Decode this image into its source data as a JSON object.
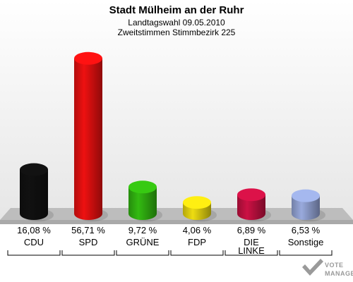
{
  "chart_data": {
    "type": "bar",
    "title": "Stadt Mülheim an der Ruhr",
    "subtitle_lines": [
      "Landtagswahl 09.05.2010",
      "Zweitstimmen Stimmbezirk 225"
    ],
    "categories": [
      "CDU",
      "SPD",
      "GRÜNE",
      "FDP",
      "DIE LINKE",
      "Sonstige"
    ],
    "category_label_lines": [
      [
        "CDU"
      ],
      [
        "SPD"
      ],
      [
        "GRÜNE"
      ],
      [
        "FDP"
      ],
      [
        "DIE",
        "LINKE"
      ],
      [
        "Sonstige"
      ]
    ],
    "values": [
      16.08,
      56.71,
      9.72,
      4.06,
      6.89,
      6.53
    ],
    "value_labels": [
      "16,08 %",
      "56,71 %",
      "9,72 %",
      "4,06 %",
      "6,89 %",
      "6,53 %"
    ],
    "colors": [
      "#111111",
      "#ee1111",
      "#33bb11",
      "#eedd11",
      "#cc1144",
      "#99aadd"
    ],
    "ylim": [
      0,
      60
    ],
    "xlabel": "",
    "ylabel": "",
    "grid": false,
    "legend": "none"
  },
  "branding": {
    "logo_text": "VOTE MANAGER"
  }
}
